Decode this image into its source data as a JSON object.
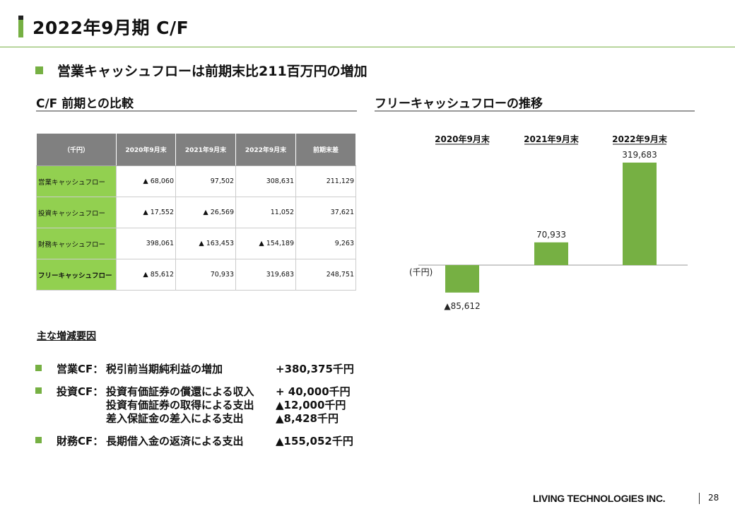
{
  "page": {
    "title": "2022年9月期 C/F",
    "lead": "営業キャッシュフローは前期末比211百万円の増加",
    "number": "28",
    "company": "LIVING TECHNOLOGIES INC."
  },
  "colors": {
    "accent": "#76b043",
    "table_label": "#92d050",
    "table_header": "#808080"
  },
  "table_section": {
    "title": "C/F 前期との比較",
    "headers": [
      "（千円）",
      "2020年9月末",
      "2021年9月末",
      "2022年9月末",
      "前期末差"
    ],
    "rows": [
      {
        "label": "営業キャッシュフロー",
        "cells": [
          "▲ 68,060",
          "97,502",
          "308,631",
          "211,129"
        ]
      },
      {
        "label": "投資キャッシュフロー",
        "cells": [
          "▲ 17,552",
          "▲ 26,569",
          "11,052",
          "37,621"
        ]
      },
      {
        "label": "財務キャッシュフロー",
        "cells": [
          "398,061",
          "▲ 163,453",
          "▲ 154,189",
          "9,263"
        ]
      },
      {
        "label": "フリーキャッシュフロー",
        "cells": [
          "▲ 85,612",
          "70,933",
          "319,683",
          "248,751"
        ]
      }
    ]
  },
  "factors": {
    "title": "主な増減要因",
    "items": [
      {
        "label": "営業CF：",
        "lines": [
          {
            "text": "税引前当期純利益の増加",
            "amount": "+380,375千円"
          }
        ]
      },
      {
        "label": "投資CF：",
        "lines": [
          {
            "text": "投資有価証券の償還による収入",
            "amount": "+ 40,000千円"
          },
          {
            "text": "投資有価証券の取得による支出",
            "amount": "▲12,000千円"
          },
          {
            "text": "差入保証金の差入による支出",
            "amount": "▲8,428千円"
          }
        ]
      },
      {
        "label": "財務CF：",
        "lines": [
          {
            "text": "長期借入金の返済による支出",
            "amount": "▲155,052千円"
          }
        ]
      }
    ]
  },
  "chart_section": {
    "title": "フリーキャッシュフローの推移"
  },
  "chart_data": {
    "type": "bar",
    "categories": [
      "2020年9月末",
      "2021年9月末",
      "2022年9月末"
    ],
    "values": [
      -85612,
      70933,
      319683
    ],
    "value_labels": [
      "▲85,612",
      "70,933",
      "319,683"
    ],
    "unit_label": "(千円)",
    "color": "#76b043"
  }
}
